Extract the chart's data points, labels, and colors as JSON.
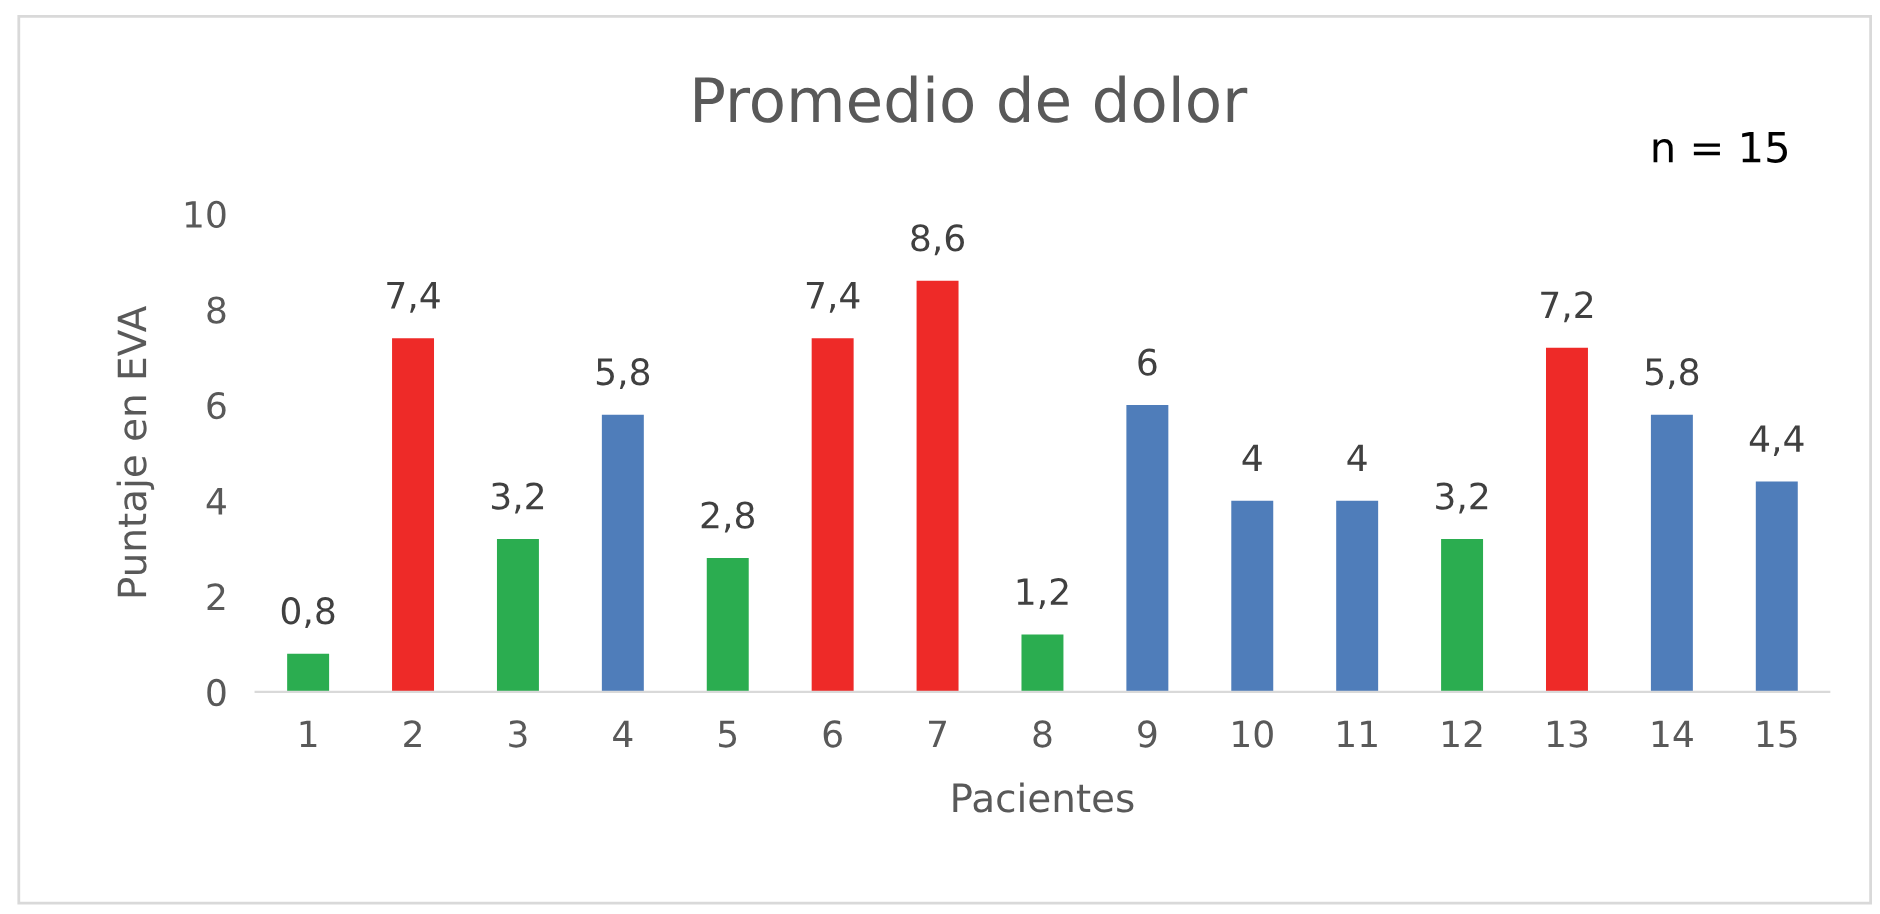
{
  "chart_data": {
    "type": "bar",
    "title": "Promedio de dolor",
    "xlabel": "Pacientes",
    "ylabel": "Puntaje en EVA",
    "annotations": [
      "n = 15"
    ],
    "categories": [
      "1",
      "2",
      "3",
      "4",
      "5",
      "6",
      "7",
      "8",
      "9",
      "10",
      "11",
      "12",
      "13",
      "14",
      "15"
    ],
    "values": [
      0.8,
      7.4,
      3.2,
      5.8,
      2.8,
      7.4,
      8.6,
      1.2,
      6,
      4,
      4,
      3.2,
      7.2,
      5.8,
      4.4
    ],
    "colors": [
      "#2bad50",
      "#ee2a28",
      "#2bad50",
      "#4f7dba",
      "#2bad50",
      "#ee2a28",
      "#ee2a28",
      "#2bad50",
      "#4f7dba",
      "#4f7dba",
      "#4f7dba",
      "#2bad50",
      "#ee2a28",
      "#4f7dba",
      "#4f7dba"
    ],
    "value_labels": [
      "0,8",
      "7,4",
      "3,2",
      "5,8",
      "2,8",
      "7,4",
      "8,6",
      "1,2",
      "6",
      "4",
      "4",
      "3,2",
      "7,2",
      "5,8",
      "4,4"
    ],
    "ylim": [
      0,
      10
    ],
    "yticks": [
      0,
      2,
      4,
      6,
      8,
      10
    ],
    "grid": false,
    "legend": false
  }
}
